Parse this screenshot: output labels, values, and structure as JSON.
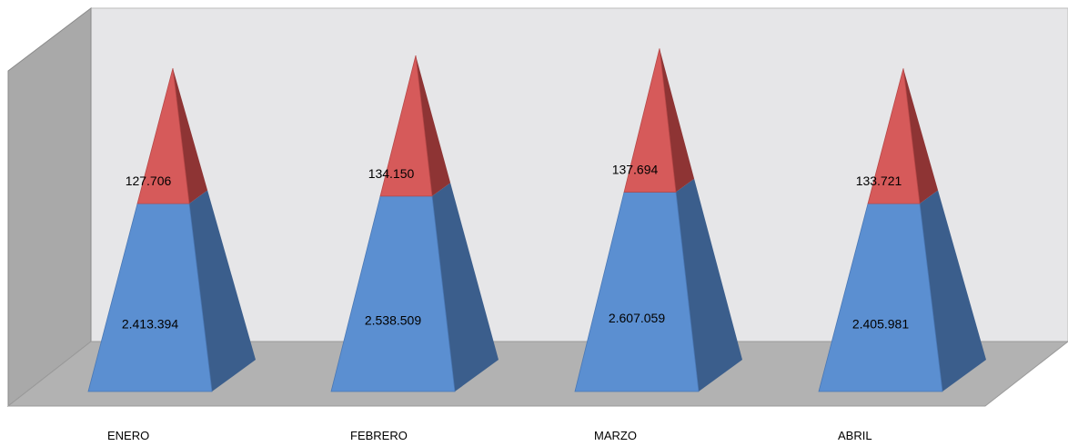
{
  "chart_data": {
    "type": "bar",
    "style": "3d-stacked-pyramid",
    "categories": [
      "ENERO",
      "FEBRERO",
      "MARZO",
      "ABRIL"
    ],
    "series": [
      {
        "values": [
          2413394,
          2538509,
          2607059,
          2405981
        ],
        "labels": [
          "2.413.394",
          "2.538.509",
          "2.607.059",
          "2.405.981"
        ],
        "color": "#5b8fd1"
      },
      {
        "values": [
          127706,
          134150,
          137694,
          133721
        ],
        "labels": [
          "127.706",
          "134.150",
          "137.694",
          "133.721"
        ],
        "color": "#d65a5a"
      }
    ],
    "ylim": [
      0,
      3300000
    ],
    "grid": false,
    "legend": "none",
    "colors": {
      "wall": "#e6e6e8",
      "side_wall": "#a9a9a9",
      "floor": "#b2b2b2",
      "blue_front": "#5b8fd1",
      "blue_side": "#3b5e8c",
      "red_front": "#d65a5a",
      "red_side": "#8e3434"
    }
  }
}
